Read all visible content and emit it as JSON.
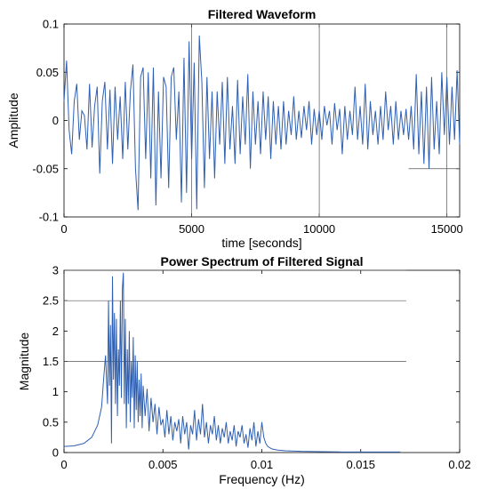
{
  "chart_data": [
    {
      "type": "line",
      "title": "Filtered Waveform",
      "xlabel": "time [seconds]",
      "ylabel": "Amplitude",
      "xlim": [
        0,
        15500
      ],
      "ylim": [
        -0.1,
        0.1
      ],
      "xticks": [
        0,
        5000,
        10000,
        15000
      ],
      "xtick_labels": [
        "0",
        "5000",
        "10000",
        "15000"
      ],
      "yticks": [
        -0.1,
        -0.05,
        0,
        0.05,
        0.1
      ],
      "ytick_labels": [
        "-0.1",
        "-0.05",
        "0",
        "0.05",
        "0.1"
      ],
      "grid": false,
      "line_color": "#2f5fb0",
      "series": [
        {
          "x": [
            0,
            100,
            200,
            300,
            400,
            500,
            600,
            700,
            800,
            900,
            1000,
            1100,
            1200,
            1300,
            1400,
            1500,
            1600,
            1700,
            1800,
            1900,
            2000,
            2100,
            2200,
            2300,
            2400,
            2500,
            2600,
            2700,
            2800,
            2900,
            3000,
            3100,
            3200,
            3300,
            3400,
            3500,
            3600,
            3700,
            3800,
            3900,
            4000,
            4100,
            4200,
            4300,
            4400,
            4500,
            4600,
            4700,
            4800,
            4900,
            5000,
            5100,
            5200,
            5300,
            5400,
            5500,
            5600,
            5700,
            5800,
            5900,
            6000,
            6100,
            6200,
            6300,
            6400,
            6500,
            6600,
            6700,
            6800,
            6900,
            7000,
            7100,
            7200,
            7300,
            7400,
            7500,
            7600,
            7700,
            7800,
            7900,
            8000,
            8100,
            8200,
            8300,
            8400,
            8500,
            8600,
            8700,
            8800,
            8900,
            9000,
            9100,
            9200,
            9300,
            9400,
            9500,
            9600,
            9700,
            9800,
            9900,
            10000,
            10100,
            10200,
            10300,
            10400,
            10500,
            10600,
            10700,
            10800,
            10900,
            11000,
            11100,
            11200,
            11300,
            11400,
            11500,
            11600,
            11700,
            11800,
            11900,
            12000,
            12100,
            12200,
            12300,
            12400,
            12500,
            12600,
            12700,
            12800,
            12900,
            13000,
            13100,
            13200,
            13300,
            13400,
            13500,
            13600,
            13700,
            13800,
            13900,
            14000,
            14100,
            14200,
            14300,
            14400,
            14500,
            14600,
            14700,
            14800,
            14900,
            15000,
            15100,
            15200,
            15300,
            15400,
            15500
          ],
          "y": [
            0.02,
            0.062,
            -0.01,
            -0.035,
            0.02,
            0.038,
            -0.02,
            0.01,
            0.005,
            -0.03,
            0.038,
            -0.028,
            0.015,
            0.035,
            -0.055,
            0.02,
            0.04,
            -0.03,
            0.032,
            -0.045,
            0.035,
            -0.02,
            0.025,
            -0.04,
            0.04,
            -0.03,
            0.03,
            0.058,
            -0.05,
            -0.093,
            0.045,
            0.055,
            -0.04,
            0.05,
            -0.06,
            0.055,
            -0.088,
            0.03,
            -0.06,
            0.045,
            0.035,
            -0.07,
            0.045,
            0.055,
            -0.02,
            0.03,
            -0.085,
            0.065,
            -0.075,
            0.082,
            -0.04,
            0.06,
            -0.092,
            0.088,
            0.04,
            -0.07,
            0.045,
            -0.04,
            0.03,
            -0.06,
            0.03,
            -0.025,
            0.04,
            -0.045,
            0.045,
            -0.03,
            0.015,
            -0.045,
            0.042,
            -0.035,
            0.025,
            -0.025,
            0.048,
            -0.05,
            0.03,
            -0.025,
            0.02,
            -0.035,
            0.03,
            -0.02,
            0.025,
            -0.04,
            0.02,
            -0.025,
            0.015,
            -0.03,
            0.02,
            -0.025,
            0.01,
            -0.015,
            0.025,
            -0.02,
            0.01,
            -0.018,
            0.015,
            -0.01,
            0.02,
            -0.025,
            0.012,
            -0.015,
            0.01,
            -0.02,
            0.015,
            -0.005,
            0.01,
            -0.025,
            0.018,
            -0.01,
            0.012,
            -0.035,
            0.015,
            -0.02,
            0.01,
            -0.015,
            0.035,
            -0.02,
            0.015,
            -0.025,
            0.038,
            -0.03,
            0.02,
            -0.015,
            0.01,
            -0.025,
            0.015,
            -0.02,
            0.03,
            -0.01,
            0.015,
            -0.025,
            0.02,
            -0.02,
            0.01,
            -0.015,
            0.012,
            -0.02,
            0.015,
            -0.03,
            0.048,
            -0.035,
            0.03,
            -0.045,
            0.035,
            -0.05,
            0.045,
            -0.03,
            0.02,
            -0.035,
            0.05,
            -0.015,
            0.045,
            -0.025,
            0.035,
            -0.02,
            0.052,
            -0.025
          ]
        }
      ]
    },
    {
      "type": "line",
      "title": "Power Spectrum of Filtered Signal",
      "xlabel": "Frequency (Hz)",
      "ylabel": "Magnitude",
      "xlim": [
        0,
        0.02
      ],
      "ylim": [
        0,
        3
      ],
      "xticks": [
        0,
        0.005,
        0.01,
        0.015,
        0.02
      ],
      "xtick_labels": [
        "0",
        "0.005",
        "0.01",
        "0.015",
        "0.02"
      ],
      "yticks": [
        0,
        0.5,
        1,
        1.5,
        2,
        2.5,
        3
      ],
      "ytick_labels": [
        "0",
        "0.5",
        "1",
        "1.5",
        "2",
        "2.5",
        "3"
      ],
      "grid": false,
      "line_color": "#2f5fb0",
      "series": [
        {
          "x": [
            0,
            0.0005,
            0.001,
            0.0014,
            0.0017,
            0.0019,
            0.002,
            0.0021,
            0.0022,
            0.00225,
            0.0023,
            0.00235,
            0.0024,
            0.00245,
            0.0025,
            0.00255,
            0.0026,
            0.00265,
            0.0027,
            0.00275,
            0.0028,
            0.00285,
            0.0029,
            0.00295,
            0.003,
            0.00305,
            0.0031,
            0.00315,
            0.0032,
            0.00325,
            0.0033,
            0.00335,
            0.0034,
            0.00345,
            0.0035,
            0.00355,
            0.0036,
            0.00365,
            0.0037,
            0.00375,
            0.0038,
            0.00385,
            0.0039,
            0.00395,
            0.004,
            0.0041,
            0.0042,
            0.0043,
            0.0044,
            0.0045,
            0.0046,
            0.0047,
            0.0048,
            0.0049,
            0.005,
            0.0051,
            0.0052,
            0.0053,
            0.0054,
            0.0055,
            0.0056,
            0.0057,
            0.0058,
            0.0059,
            0.006,
            0.0061,
            0.0062,
            0.0063,
            0.0064,
            0.0065,
            0.0066,
            0.0067,
            0.0068,
            0.0069,
            0.007,
            0.0071,
            0.0072,
            0.0073,
            0.0074,
            0.0075,
            0.0076,
            0.0077,
            0.0078,
            0.0079,
            0.008,
            0.0081,
            0.0082,
            0.0083,
            0.0084,
            0.0085,
            0.0086,
            0.0087,
            0.0088,
            0.0089,
            0.009,
            0.0091,
            0.0092,
            0.0093,
            0.0094,
            0.0095,
            0.0096,
            0.0097,
            0.0098,
            0.0099,
            0.01,
            0.0101,
            0.0102,
            0.0103,
            0.0105,
            0.0108,
            0.0112,
            0.012,
            0.013,
            0.014,
            0.015,
            0.016,
            0.017
          ],
          "y": [
            0.1,
            0.11,
            0.15,
            0.25,
            0.45,
            0.75,
            1.2,
            1.6,
            0.8,
            2.5,
            1.1,
            2.1,
            0.15,
            2.9,
            1.2,
            2.3,
            0.8,
            2.2,
            0.6,
            1.7,
            1.1,
            2.5,
            0.9,
            2.7,
            2.96,
            0.8,
            2.2,
            0.4,
            1.7,
            0.8,
            2.0,
            0.5,
            1.5,
            0.9,
            1.9,
            0.4,
            1.6,
            0.7,
            1.5,
            0.5,
            1.2,
            0.6,
            1.3,
            0.4,
            1.1,
            0.6,
            1.05,
            0.35,
            0.9,
            0.5,
            0.8,
            0.3,
            0.75,
            0.45,
            0.55,
            0.25,
            0.7,
            0.3,
            0.6,
            0.2,
            0.5,
            0.35,
            0.55,
            0.15,
            0.6,
            0.3,
            0.5,
            0.05,
            0.45,
            0.3,
            0.7,
            0.2,
            0.55,
            0.3,
            0.8,
            0.25,
            0.5,
            0.15,
            0.45,
            0.3,
            0.6,
            0.2,
            0.45,
            0.15,
            0.4,
            0.25,
            0.5,
            0.15,
            0.35,
            0.2,
            0.45,
            0.1,
            0.35,
            0.25,
            0.45,
            0.15,
            0.3,
            0.08,
            0.4,
            0.2,
            0.5,
            0.1,
            0.35,
            0.15,
            0.5,
            0.25,
            0.15,
            0.1,
            0.06,
            0.04,
            0.03,
            0.02,
            0.015,
            0.01,
            0.01,
            0.01,
            0.01
          ]
        }
      ]
    }
  ]
}
